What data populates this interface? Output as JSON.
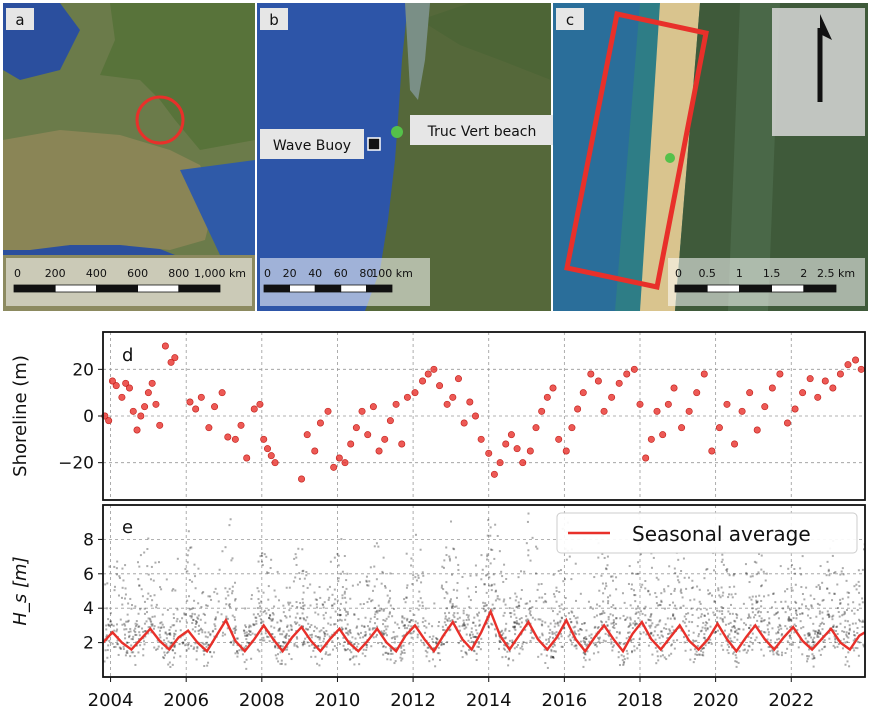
{
  "maps": {
    "a": {
      "label": "a",
      "scale_ticks": [
        "0",
        "200",
        "400",
        "600",
        "800",
        "1,000 km"
      ]
    },
    "b": {
      "label": "b",
      "scale_ticks": [
        "0",
        "20",
        "40",
        "60",
        "80",
        "100 km"
      ],
      "wave_buoy_label": "Wave Buoy",
      "beach_label": "Truc Vert beach"
    },
    "c": {
      "label": "c",
      "scale_ticks": [
        "0",
        "0.5",
        "1",
        "1.5",
        "2",
        "2.5 km"
      ]
    },
    "colors": {
      "sea": "#2d55a8",
      "land": "#556b34",
      "marker_red": "#e8302a",
      "site_green": "#55c14a"
    }
  },
  "chart_data": [
    {
      "type": "scatter",
      "panel": "d",
      "ylabel": "Shoreline (m)",
      "xlim": [
        2003.8,
        2023.95
      ],
      "ylim": [
        -36,
        36
      ],
      "yticks": [
        "20",
        "0",
        "−20"
      ],
      "ytick_values": [
        20,
        0,
        -20
      ],
      "grid": true,
      "color": "#e8302a",
      "x": [
        2003.85,
        2003.95,
        2004.05,
        2004.15,
        2004.3,
        2004.4,
        2004.5,
        2004.6,
        2004.7,
        2004.8,
        2004.9,
        2005.0,
        2005.1,
        2005.2,
        2005.3,
        2005.45,
        2005.6,
        2005.7,
        2006.1,
        2006.25,
        2006.4,
        2006.6,
        2006.75,
        2006.95,
        2007.1,
        2007.3,
        2007.45,
        2007.6,
        2007.8,
        2007.95,
        2008.05,
        2008.15,
        2008.25,
        2008.35,
        2009.05,
        2009.2,
        2009.4,
        2009.55,
        2009.75,
        2009.9,
        2010.05,
        2010.2,
        2010.35,
        2010.5,
        2010.65,
        2010.8,
        2010.95,
        2011.1,
        2011.25,
        2011.4,
        2011.55,
        2011.7,
        2011.85,
        2012.05,
        2012.25,
        2012.4,
        2012.55,
        2012.7,
        2012.9,
        2013.05,
        2013.2,
        2013.35,
        2013.5,
        2013.65,
        2013.8,
        2014.0,
        2014.15,
        2014.3,
        2014.45,
        2014.6,
        2014.75,
        2014.9,
        2015.1,
        2015.25,
        2015.4,
        2015.55,
        2015.7,
        2015.85,
        2016.05,
        2016.2,
        2016.35,
        2016.5,
        2016.7,
        2016.9,
        2017.05,
        2017.25,
        2017.45,
        2017.65,
        2017.85,
        2018.0,
        2018.15,
        2018.3,
        2018.45,
        2018.6,
        2018.75,
        2018.9,
        2019.1,
        2019.3,
        2019.5,
        2019.7,
        2019.9,
        2020.1,
        2020.3,
        2020.5,
        2020.7,
        2020.9,
        2021.1,
        2021.3,
        2021.5,
        2021.7,
        2021.9,
        2022.1,
        2022.3,
        2022.5,
        2022.7,
        2022.9,
        2023.1,
        2023.3,
        2023.5,
        2023.7,
        2023.85
      ],
      "y": [
        0,
        -2,
        15,
        13,
        8,
        14,
        12,
        2,
        -6,
        0,
        4,
        10,
        14,
        5,
        -4,
        30,
        23,
        25,
        6,
        3,
        8,
        -5,
        4,
        10,
        -9,
        -10,
        -4,
        -18,
        3,
        5,
        -10,
        -14,
        -17,
        -20,
        -27,
        -8,
        -15,
        -3,
        2,
        -22,
        -18,
        -20,
        -12,
        -5,
        2,
        -8,
        4,
        -15,
        -10,
        -2,
        5,
        -12,
        8,
        10,
        15,
        18,
        20,
        13,
        5,
        8,
        16,
        -3,
        6,
        0,
        -10,
        -16,
        -25,
        -20,
        -12,
        -8,
        -14,
        -20,
        -15,
        -5,
        2,
        8,
        12,
        -10,
        -15,
        -5,
        3,
        10,
        18,
        15,
        2,
        8,
        14,
        18,
        20,
        5,
        -18,
        -10,
        2,
        -8,
        5,
        12,
        -5,
        2,
        10,
        18,
        -15,
        -5,
        5,
        -12,
        2,
        10,
        -6,
        4,
        12,
        18,
        -3,
        3,
        10,
        16,
        8,
        15,
        12,
        18,
        22,
        24,
        20
      ],
      "xticks": [
        "2004",
        "2006",
        "2008",
        "2010",
        "2012",
        "2014",
        "2016",
        "2018",
        "2020",
        "2022"
      ],
      "xtick_values": [
        2004,
        2006,
        2008,
        2010,
        2012,
        2014,
        2016,
        2018,
        2020,
        2022
      ]
    },
    {
      "type": "line",
      "panel": "e",
      "ylabel": "H_s [m]",
      "xlim": [
        2003.8,
        2023.95
      ],
      "ylim": [
        0,
        10
      ],
      "yticks": [
        "2",
        "4",
        "6",
        "8"
      ],
      "ytick_values": [
        2,
        4,
        6,
        8
      ],
      "grid": true,
      "legend": "top-right",
      "series": [
        {
          "name": "Seasonal average",
          "color": "#e8302a",
          "x": [
            2003.8,
            2004.05,
            2004.3,
            2004.55,
            2004.8,
            2005.05,
            2005.3,
            2005.55,
            2005.8,
            2006.05,
            2006.3,
            2006.55,
            2006.8,
            2007.05,
            2007.3,
            2007.55,
            2007.8,
            2008.05,
            2008.3,
            2008.55,
            2008.8,
            2009.05,
            2009.3,
            2009.55,
            2009.8,
            2010.05,
            2010.3,
            2010.55,
            2010.8,
            2011.05,
            2011.3,
            2011.55,
            2011.8,
            2012.05,
            2012.3,
            2012.55,
            2012.8,
            2013.05,
            2013.3,
            2013.55,
            2013.8,
            2014.05,
            2014.3,
            2014.55,
            2014.8,
            2015.05,
            2015.3,
            2015.55,
            2015.8,
            2016.05,
            2016.3,
            2016.55,
            2016.8,
            2017.05,
            2017.3,
            2017.55,
            2017.8,
            2018.05,
            2018.3,
            2018.55,
            2018.8,
            2019.05,
            2019.3,
            2019.55,
            2019.8,
            2020.05,
            2020.3,
            2020.55,
            2020.8,
            2021.05,
            2021.3,
            2021.55,
            2021.8,
            2022.05,
            2022.3,
            2022.55,
            2022.8,
            2023.05,
            2023.3,
            2023.55,
            2023.8,
            2023.95
          ],
          "y": [
            2.0,
            2.6,
            2.0,
            1.6,
            2.2,
            2.8,
            2.1,
            1.6,
            2.3,
            2.7,
            2.0,
            1.5,
            2.4,
            3.3,
            2.1,
            1.5,
            2.2,
            3.0,
            2.2,
            1.5,
            2.3,
            2.9,
            2.1,
            1.5,
            2.2,
            2.8,
            2.0,
            1.5,
            2.1,
            2.8,
            2.0,
            1.5,
            2.4,
            3.0,
            2.2,
            1.5,
            2.4,
            3.2,
            2.2,
            1.6,
            2.6,
            3.8,
            2.4,
            1.6,
            2.4,
            3.2,
            2.2,
            1.6,
            2.3,
            3.3,
            2.2,
            1.5,
            2.3,
            3.0,
            2.2,
            1.5,
            2.5,
            3.2,
            2.2,
            1.6,
            2.3,
            3.0,
            2.1,
            1.6,
            2.2,
            3.1,
            2.2,
            1.5,
            2.3,
            3.0,
            2.2,
            1.6,
            2.3,
            2.9,
            2.1,
            1.6,
            2.2,
            2.8,
            2.0,
            1.6,
            2.4,
            2.6
          ]
        }
      ],
      "xticks": [
        "2004",
        "2006",
        "2008",
        "2010",
        "2012",
        "2014",
        "2016",
        "2018",
        "2020",
        "2022"
      ],
      "xtick_values": [
        2004,
        2006,
        2008,
        2010,
        2012,
        2014,
        2016,
        2018,
        2020,
        2022
      ]
    }
  ]
}
